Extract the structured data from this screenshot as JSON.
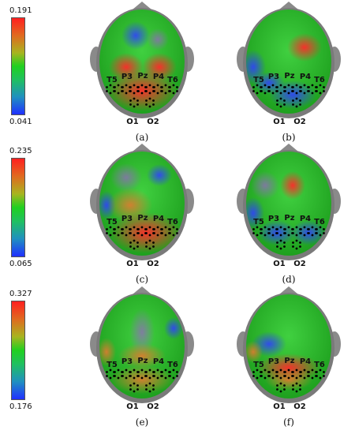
{
  "colorbars": [
    {
      "max": "0.191",
      "min": "0.041"
    },
    {
      "max": "0.235",
      "min": "0.065"
    },
    {
      "max": "0.327",
      "min": "0.176"
    }
  ],
  "electrodes": {
    "t5": "T5",
    "p3": "P3",
    "pz": "Pz",
    "p4": "P4",
    "t6": "T6",
    "o1": "O1",
    "o2": "O2"
  },
  "panels": [
    {
      "label": "(a)"
    },
    {
      "label": "(b)"
    },
    {
      "label": "(c)"
    },
    {
      "label": "(d)"
    },
    {
      "label": "(e)"
    },
    {
      "label": "(f)"
    }
  ]
}
